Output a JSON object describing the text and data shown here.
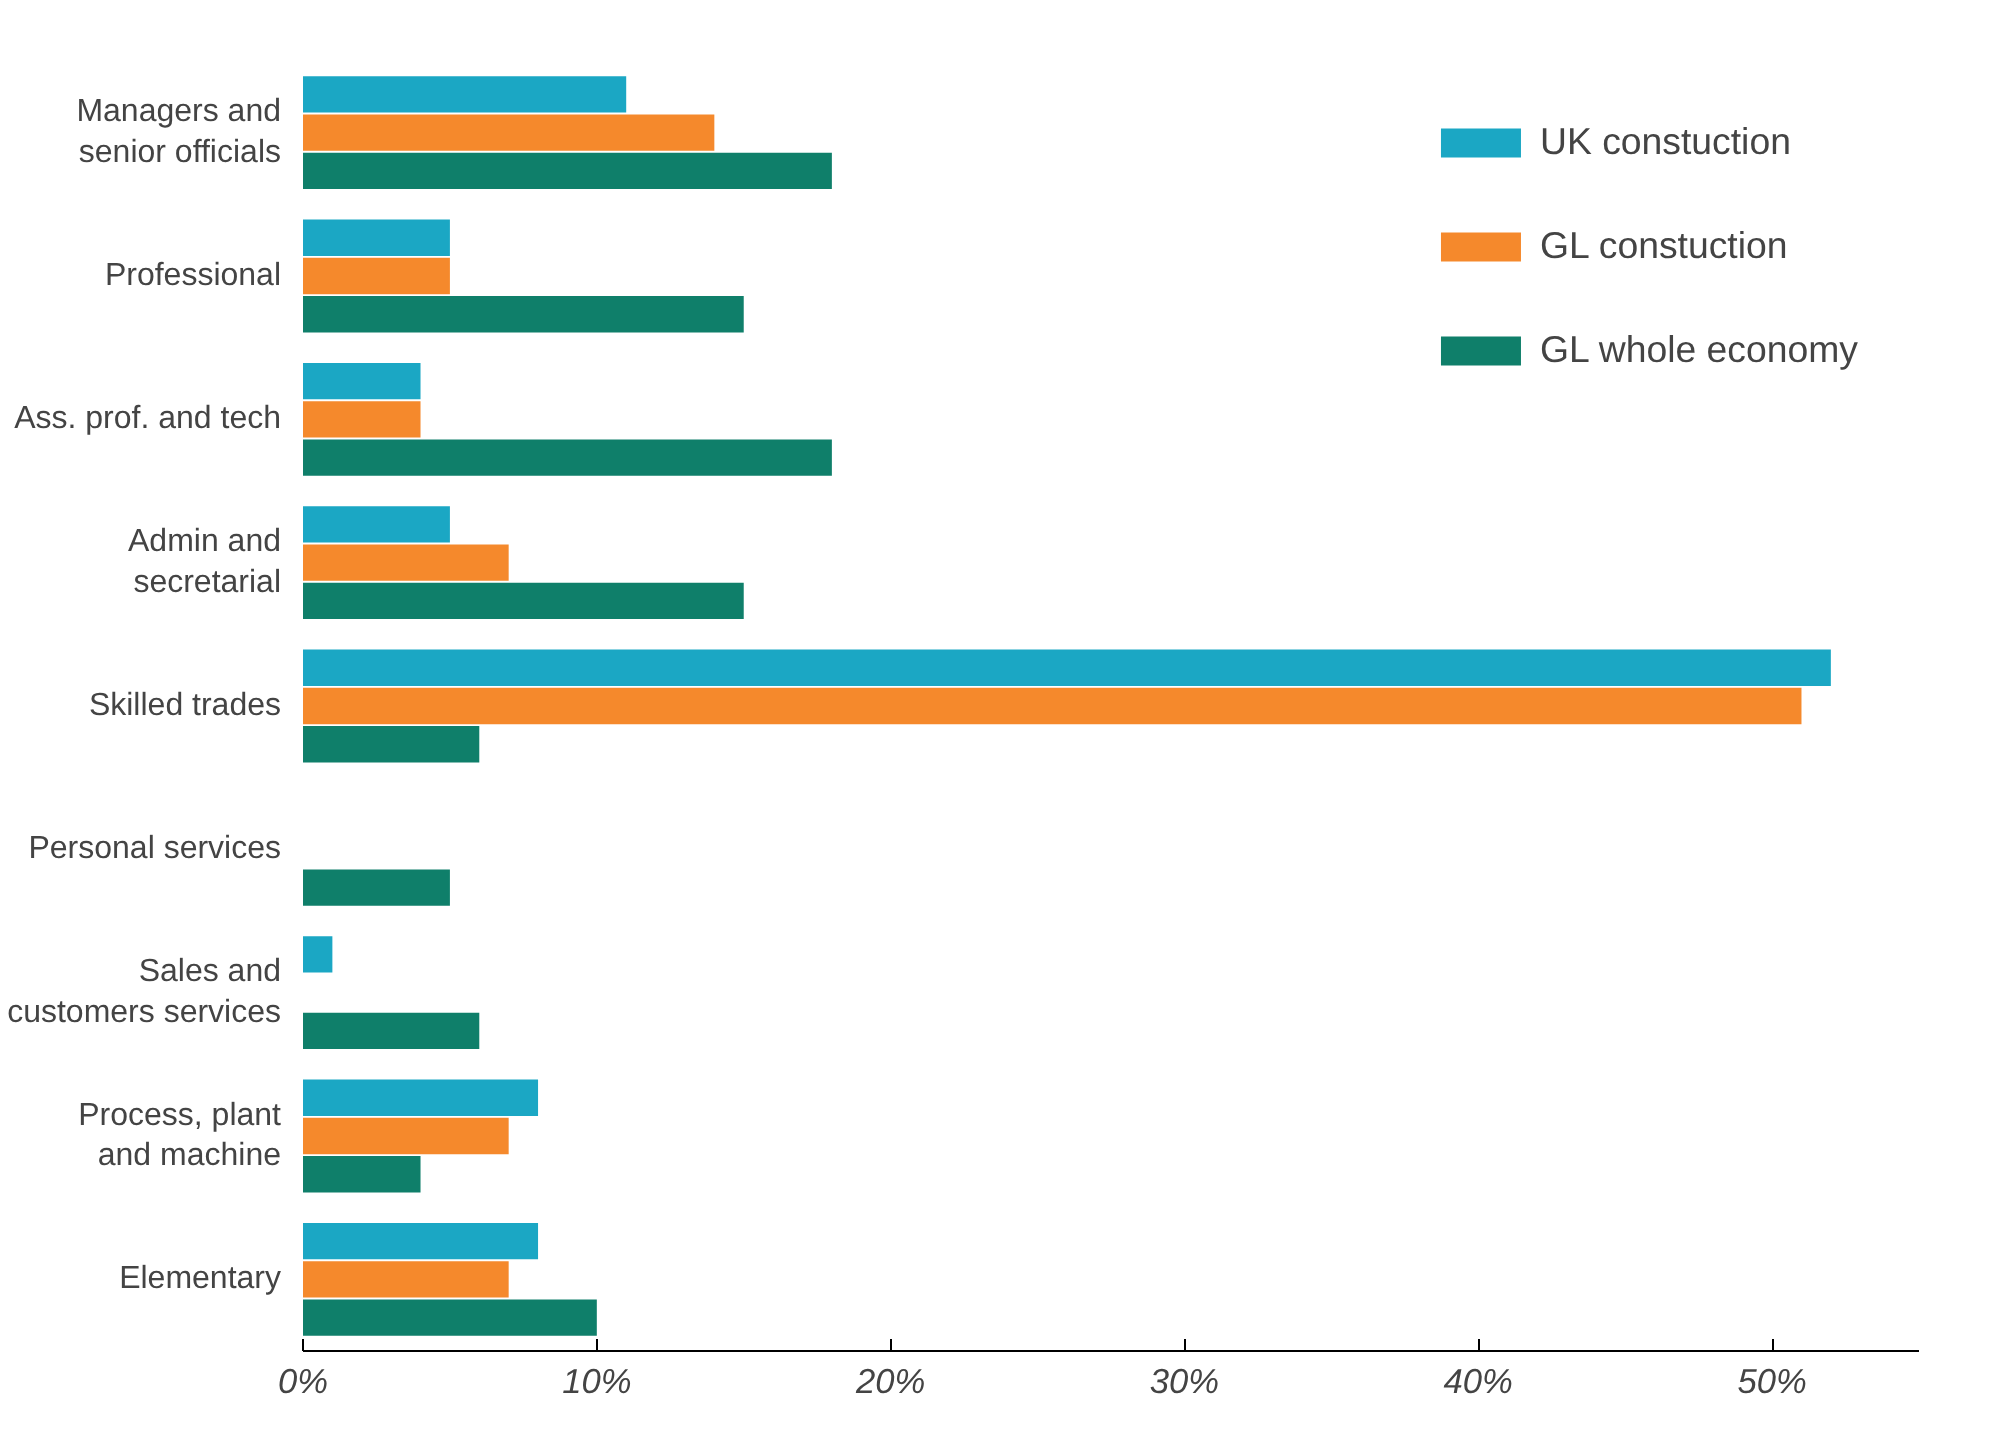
{
  "chart_data": {
    "type": "bar",
    "orientation": "horizontal",
    "categories": [
      "Managers and\nsenior officials",
      "Professional",
      "Ass. prof. and tech",
      "Admin and\nsecretarial",
      "Skilled trades",
      "Personal services",
      "Sales and\ncustomers services",
      "Process, plant\nand machine",
      "Elementary"
    ],
    "series": [
      {
        "name": "UK constuction",
        "color": "#1ba7c4",
        "values": [
          11,
          5,
          4,
          5,
          52,
          0,
          1,
          8,
          8
        ]
      },
      {
        "name": "GL constuction",
        "color": "#f5892c",
        "values": [
          14,
          5,
          4,
          7,
          51,
          0,
          0,
          7,
          7
        ]
      },
      {
        "name": "GL whole economy",
        "color": "#0f7f6a",
        "values": [
          18,
          15,
          18,
          15,
          6,
          5,
          6,
          4,
          10
        ]
      }
    ],
    "xlim": [
      0,
      55
    ],
    "xticks": [
      {
        "value": 0,
        "label": "0%"
      },
      {
        "value": 10,
        "label": "10%"
      },
      {
        "value": 20,
        "label": "20%"
      },
      {
        "value": 30,
        "label": "30%"
      },
      {
        "value": 40,
        "label": "40%"
      },
      {
        "value": 50,
        "label": "50%"
      }
    ],
    "grid": false,
    "legend": "top right"
  }
}
